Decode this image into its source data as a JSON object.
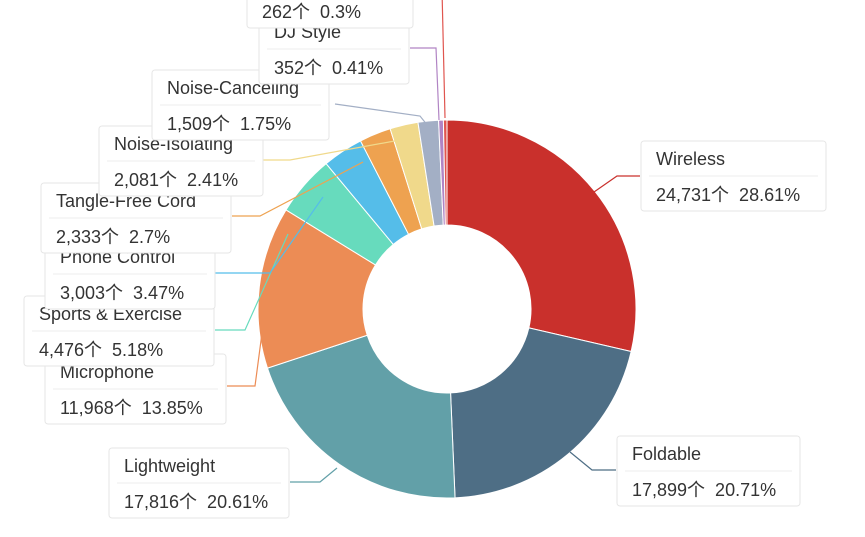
{
  "chart_data": {
    "type": "pie",
    "variant": "donut",
    "unit_suffix": "个",
    "slices": [
      {
        "name": "Wireless",
        "value": 24731,
        "value_label": "24,731",
        "percent_label": "28.61%",
        "color": "#c9302c"
      },
      {
        "name": "Foldable",
        "value": 17899,
        "value_label": "17,899",
        "percent_label": "20.71%",
        "color": "#4e6e85"
      },
      {
        "name": "Lightweight",
        "value": 17816,
        "value_label": "17,816",
        "percent_label": "20.61%",
        "color": "#62a0a8"
      },
      {
        "name": "Microphone",
        "value": 11968,
        "value_label": "11,968",
        "percent_label": "13.85%",
        "color": "#ec8c55"
      },
      {
        "name": "Sports & Exercise",
        "value": 4476,
        "value_label": "4,476",
        "percent_label": "5.18%",
        "color": "#67dbbd"
      },
      {
        "name": "Phone Control",
        "value": 3003,
        "value_label": "3,003",
        "percent_label": "3.47%",
        "color": "#55bde9"
      },
      {
        "name": "Tangle-Free Cord",
        "value": 2333,
        "value_label": "2,333",
        "percent_label": "2.7%",
        "color": "#eea250"
      },
      {
        "name": "Noise-Isolating",
        "value": 2081,
        "value_label": "2,081",
        "percent_label": "2.41%",
        "color": "#f0d98b"
      },
      {
        "name": "Noise-Canceling",
        "value": 1509,
        "value_label": "1,509",
        "percent_label": "1.75%",
        "color": "#a3afc5"
      },
      {
        "name": "DJ Style",
        "value": 352,
        "value_label": "352",
        "percent_label": "0.41%",
        "color": "#b184c4"
      },
      {
        "name": "",
        "value": 262,
        "value_label": "262",
        "percent_label": "0.3%",
        "color": "#e0554f"
      }
    ]
  }
}
